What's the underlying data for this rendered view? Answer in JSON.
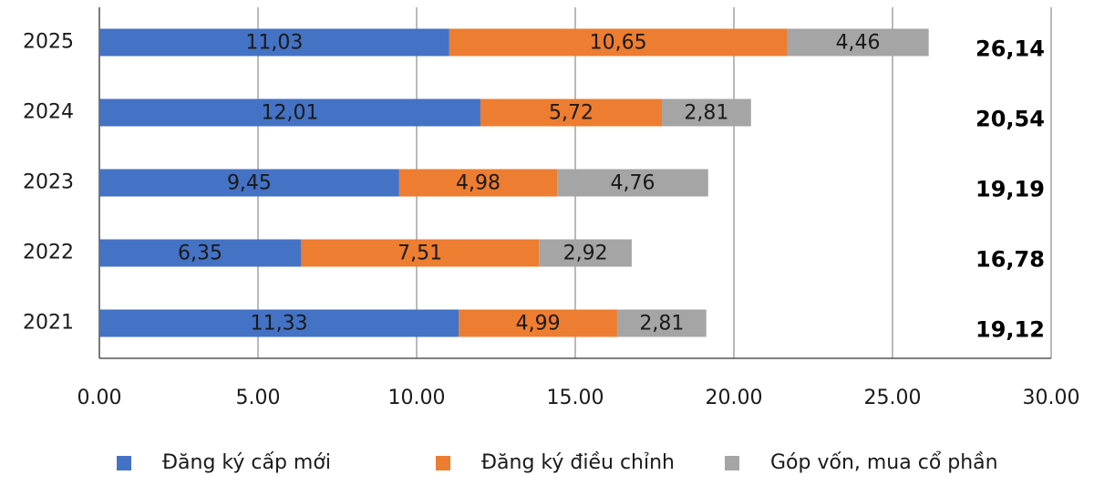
{
  "chart_data": {
    "type": "stacked-barh",
    "categories": [
      "2025",
      "2024",
      "2023",
      "2022",
      "2021"
    ],
    "series": [
      {
        "name": "Đăng ký cấp mới",
        "color": "#4472c4",
        "values": [
          11.03,
          12.01,
          9.45,
          6.35,
          11.33
        ],
        "value_labels": [
          "11,03",
          "12,01",
          "9,45",
          "6,35",
          "11,33"
        ]
      },
      {
        "name": "Đăng ký điều chỉnh",
        "color": "#ed7d31",
        "values": [
          10.65,
          5.72,
          4.98,
          7.51,
          4.99
        ],
        "value_labels": [
          "10,65",
          "5,72",
          "4,98",
          "7,51",
          "4,99"
        ]
      },
      {
        "name": "Góp vốn, mua cổ phần",
        "color": "#a5a5a5",
        "values": [
          4.46,
          2.81,
          4.76,
          2.92,
          2.81
        ],
        "value_labels": [
          "4,46",
          "2,81",
          "4,76",
          "2,92",
          "2,81"
        ]
      }
    ],
    "totals": [
      26.14,
      20.54,
      19.19,
      16.78,
      19.12
    ],
    "total_labels": [
      "26,14",
      "20,54",
      "19,19",
      "16,78",
      "19,12"
    ],
    "xlim": [
      0,
      30
    ],
    "xticks": [
      {
        "value": 0,
        "label": "0.00"
      },
      {
        "value": 5,
        "label": "5.00"
      },
      {
        "value": 10,
        "label": "10.00"
      },
      {
        "value": 15,
        "label": "15.00"
      },
      {
        "value": 20,
        "label": "20.00"
      },
      {
        "value": 25,
        "label": "25.00"
      },
      {
        "value": 30,
        "label": "30.00"
      }
    ],
    "grid": true,
    "legend": "bottom"
  }
}
